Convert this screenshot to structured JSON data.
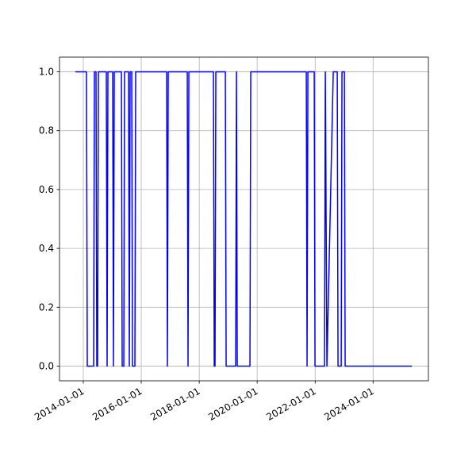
{
  "chart_data": {
    "type": "line",
    "x": [
      "2013-09-23",
      "2014-02-10",
      "2014-02-20",
      "2014-05-11",
      "2014-05-21",
      "2014-06-10",
      "2014-06-20",
      "2014-06-30",
      "2014-07-10",
      "2014-10-18",
      "2014-10-28",
      "2014-11-07",
      "2015-01-06",
      "2015-01-16",
      "2015-01-26",
      "2015-04-26",
      "2015-05-06",
      "2015-05-26",
      "2015-06-05",
      "2015-07-25",
      "2015-08-04",
      "2015-08-14",
      "2015-09-03",
      "2015-09-13",
      "2015-10-13",
      "2015-10-23",
      "2016-11-16",
      "2016-11-26",
      "2016-12-06",
      "2017-08-03",
      "2017-08-13",
      "2017-08-23",
      "2018-06-29",
      "2018-07-09",
      "2018-07-19",
      "2018-07-29",
      "2018-11-26",
      "2018-12-06",
      "2019-04-05",
      "2019-04-15",
      "2019-04-25",
      "2019-10-02",
      "2019-10-12",
      "2021-09-11",
      "2021-09-21",
      "2021-10-01",
      "2021-12-20",
      "2021-12-30",
      "2022-04-29",
      "2022-05-09",
      "2022-05-29",
      "2022-08-17",
      "2022-10-06",
      "2022-10-16",
      "2022-11-25",
      "2022-12-05",
      "2023-01-04",
      "2023-01-14",
      "2025-05-03"
    ],
    "values": [
      1,
      1,
      0,
      0,
      1,
      1,
      0,
      0,
      1,
      1,
      0,
      1,
      1,
      0,
      1,
      1,
      0,
      0,
      1,
      1,
      0,
      1,
      1,
      0,
      0,
      1,
      1,
      0,
      1,
      1,
      0,
      1,
      1,
      0,
      0,
      1,
      1,
      0,
      0,
      1,
      0,
      0,
      1,
      1,
      0,
      1,
      1,
      0,
      0,
      1,
      0,
      1,
      1,
      0,
      0,
      1,
      1,
      0,
      0
    ],
    "color": "#0000ff",
    "xlim": [
      "2013-03-07",
      "2025-11-28"
    ],
    "xticks": [
      "2014-01-01",
      "2016-01-01",
      "2018-01-01",
      "2020-01-01",
      "2022-01-01",
      "2024-01-01"
    ],
    "ylim": [
      -0.05,
      1.05
    ],
    "yticks": [
      {
        "value": 0,
        "label": "0.0"
      },
      {
        "value": 0.2,
        "label": "0.2"
      },
      {
        "value": 0.4,
        "label": "0.4"
      },
      {
        "value": 0.6,
        "label": "0.6"
      },
      {
        "value": 0.8,
        "label": "0.8"
      },
      {
        "value": 1,
        "label": "1.0"
      }
    ],
    "grid": true
  }
}
